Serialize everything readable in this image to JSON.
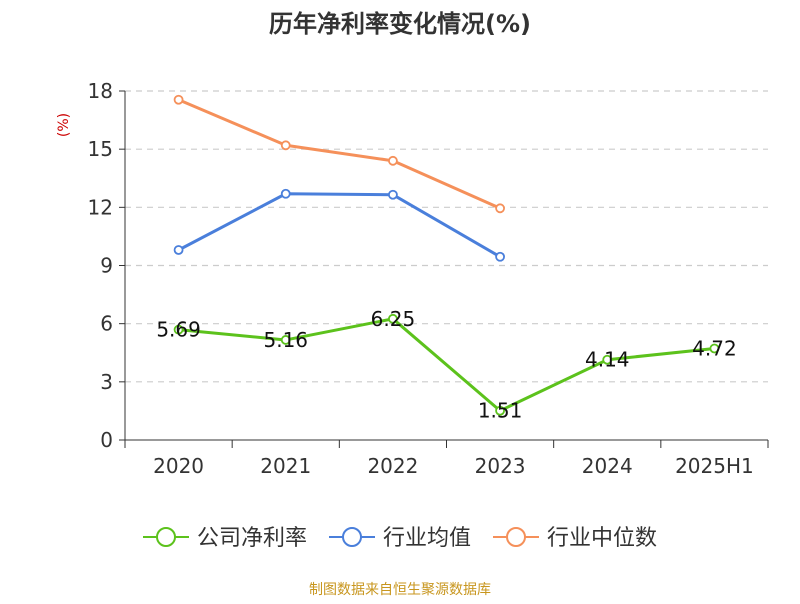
{
  "chart_data": {
    "type": "line",
    "title": "历年净利率变化情况(%)",
    "ylabel": "(%)",
    "xlabel": "",
    "categories": [
      "2020",
      "2021",
      "2022",
      "2023",
      "2024",
      "2025H1"
    ],
    "ylim": [
      0,
      18
    ],
    "yticks": [
      0,
      3,
      6,
      9,
      12,
      15,
      18
    ],
    "grid": true,
    "legend_position": "bottom",
    "series": [
      {
        "name": "公司净利率",
        "color": "#5cc21c",
        "values": [
          5.69,
          5.16,
          6.25,
          1.51,
          4.14,
          4.72
        ],
        "labels": [
          "5.69",
          "5.16",
          "6.25",
          "1.51",
          "4.14",
          "4.72"
        ]
      },
      {
        "name": "行业均值",
        "color": "#4a7fdb",
        "values": [
          9.8,
          12.7,
          12.65,
          9.45,
          null,
          null
        ],
        "labels": null
      },
      {
        "name": "行业中位数",
        "color": "#f5905a",
        "values": [
          17.55,
          15.2,
          14.4,
          11.95,
          null,
          null
        ],
        "labels": null
      }
    ]
  },
  "footer": {
    "source": "制图数据来自恒生聚源数据库"
  },
  "colors": {
    "title": "#333333",
    "axis": "#333333",
    "ylabel": "#cc0000",
    "grid": "#cccccc",
    "footer": "#c8961e"
  }
}
